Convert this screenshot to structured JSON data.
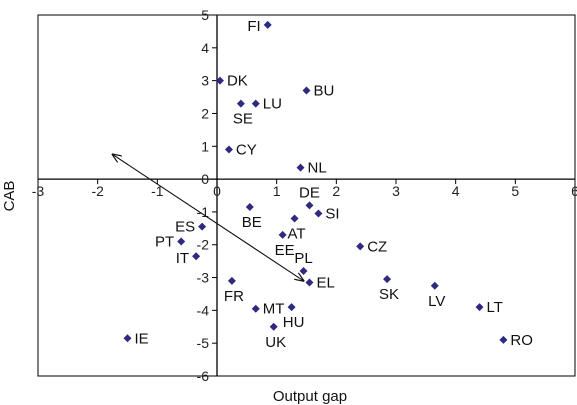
{
  "chart_data": {
    "type": "scatter",
    "title": "",
    "xlabel": "Output gap",
    "ylabel": "CAB",
    "xlim": [
      -3,
      6
    ],
    "ylim": [
      -6,
      5
    ],
    "xticks": [
      -3,
      -2,
      -1,
      0,
      1,
      2,
      3,
      4,
      5,
      6
    ],
    "yticks": [
      -6,
      -5,
      -4,
      -3,
      -2,
      -1,
      0,
      1,
      2,
      3,
      4,
      5
    ],
    "grid": false,
    "marker_color": "#2E2A80",
    "points": [
      {
        "label": "FI",
        "x": 0.85,
        "y": 4.7
      },
      {
        "label": "DK",
        "x": 0.05,
        "y": 3.0
      },
      {
        "label": "BU",
        "x": 1.5,
        "y": 2.7
      },
      {
        "label": "LU",
        "x": 0.65,
        "y": 2.3
      },
      {
        "label": "SE",
        "x": 0.4,
        "y": 2.3
      },
      {
        "label": "CY",
        "x": 0.2,
        "y": 0.9
      },
      {
        "label": "NL",
        "x": 1.4,
        "y": 0.35
      },
      {
        "label": "DE",
        "x": 1.55,
        "y": -0.8
      },
      {
        "label": "SI",
        "x": 1.7,
        "y": -1.05
      },
      {
        "label": "BE",
        "x": 0.55,
        "y": -0.85
      },
      {
        "label": "AT",
        "x": 1.3,
        "y": -1.2
      },
      {
        "label": "ES",
        "x": -0.25,
        "y": -1.45
      },
      {
        "label": "EE",
        "x": 1.1,
        "y": -1.7
      },
      {
        "label": "CZ",
        "x": 2.4,
        "y": -2.05
      },
      {
        "label": "PT",
        "x": -0.6,
        "y": -1.9
      },
      {
        "label": "PL",
        "x": 1.45,
        "y": -2.8
      },
      {
        "label": "IT",
        "x": -0.35,
        "y": -2.35
      },
      {
        "label": "EL",
        "x": 1.55,
        "y": -3.15
      },
      {
        "label": "FR",
        "x": 0.25,
        "y": -3.1
      },
      {
        "label": "SK",
        "x": 2.85,
        "y": -3.05
      },
      {
        "label": "LV",
        "x": 3.65,
        "y": -3.25
      },
      {
        "label": "LT",
        "x": 4.4,
        "y": -3.9
      },
      {
        "label": "MT",
        "x": 0.65,
        "y": -3.95
      },
      {
        "label": "HU",
        "x": 1.25,
        "y": -3.9
      },
      {
        "label": "UK",
        "x": 0.95,
        "y": -4.5
      },
      {
        "label": "IE",
        "x": -1.5,
        "y": -4.85
      },
      {
        "label": "RO",
        "x": 4.8,
        "y": -4.9
      }
    ],
    "arrow": {
      "from": [
        -1.75,
        0.75
      ],
      "to": [
        1.45,
        -3.1
      ],
      "bidirectional": true
    }
  }
}
